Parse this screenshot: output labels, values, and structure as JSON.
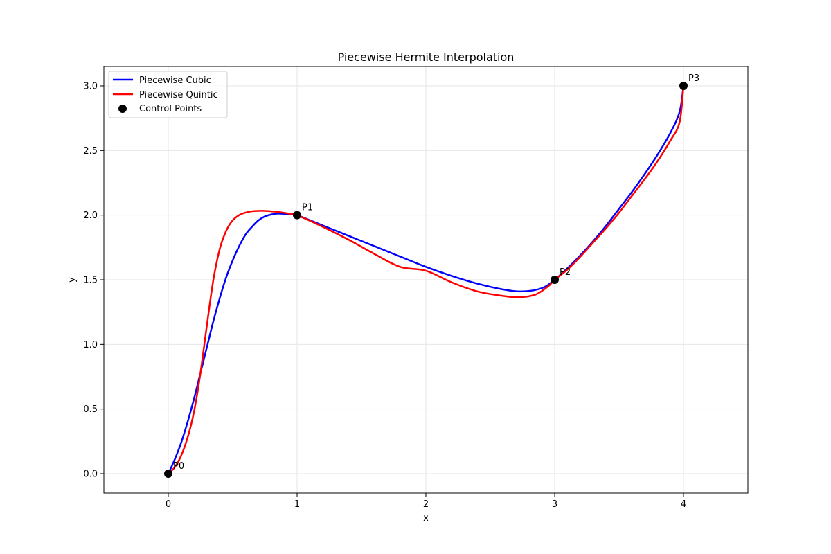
{
  "chart_data": {
    "type": "line",
    "title": "Piecewise Hermite Interpolation",
    "xlabel": "x",
    "ylabel": "y",
    "xlim": [
      -0.5,
      4.5
    ],
    "ylim": [
      -0.15,
      3.15
    ],
    "xticks": [
      0,
      1,
      2,
      3,
      4
    ],
    "xtick_labels": [
      "0",
      "1",
      "2",
      "3",
      "4"
    ],
    "yticks": [
      0.0,
      0.5,
      1.0,
      1.5,
      2.0,
      2.5,
      3.0
    ],
    "ytick_labels": [
      "0.0",
      "0.5",
      "1.0",
      "1.5",
      "2.0",
      "2.5",
      "3.0"
    ],
    "grid": true,
    "legend_position": "upper-left",
    "series": [
      {
        "name": "Piecewise Cubic",
        "color": "#0000ff",
        "x": [
          0.0,
          0.05,
          0.1,
          0.15,
          0.2,
          0.25,
          0.3,
          0.35,
          0.4,
          0.45,
          0.5,
          0.55,
          0.6,
          0.65,
          0.7,
          0.75,
          0.8,
          0.85,
          0.9,
          0.95,
          1.0,
          1.2,
          1.4,
          1.6,
          1.8,
          2.0,
          2.2,
          2.4,
          2.6,
          2.75,
          2.9,
          3.0,
          3.1,
          3.2,
          3.3,
          3.4,
          3.5,
          3.6,
          3.7,
          3.8,
          3.9,
          3.97,
          4.0
        ],
        "y": [
          0.0,
          0.11,
          0.24,
          0.4,
          0.58,
          0.78,
          0.98,
          1.18,
          1.36,
          1.52,
          1.65,
          1.76,
          1.85,
          1.91,
          1.96,
          1.99,
          2.005,
          2.012,
          2.01,
          2.006,
          2.0,
          1.92,
          1.84,
          1.76,
          1.68,
          1.6,
          1.53,
          1.47,
          1.425,
          1.41,
          1.435,
          1.5,
          1.59,
          1.69,
          1.8,
          1.92,
          2.05,
          2.18,
          2.32,
          2.47,
          2.64,
          2.8,
          3.0
        ]
      },
      {
        "name": "Piecewise Quintic",
        "color": "#ff0000",
        "x": [
          0.0,
          0.05,
          0.1,
          0.15,
          0.2,
          0.25,
          0.3,
          0.35,
          0.4,
          0.45,
          0.5,
          0.55,
          0.6,
          0.65,
          0.7,
          0.75,
          0.8,
          0.85,
          0.9,
          0.95,
          1.0,
          1.2,
          1.4,
          1.6,
          1.8,
          2.0,
          2.2,
          2.4,
          2.6,
          2.72,
          2.85,
          2.95,
          3.0,
          3.1,
          3.2,
          3.3,
          3.4,
          3.5,
          3.6,
          3.7,
          3.8,
          3.9,
          3.97,
          4.0
        ],
        "y": [
          0.0,
          0.05,
          0.14,
          0.28,
          0.48,
          0.78,
          1.15,
          1.5,
          1.74,
          1.88,
          1.96,
          2.0,
          2.02,
          2.03,
          2.033,
          2.033,
          2.03,
          2.025,
          2.018,
          2.01,
          2.0,
          1.91,
          1.81,
          1.7,
          1.6,
          1.57,
          1.48,
          1.41,
          1.375,
          1.365,
          1.385,
          1.45,
          1.5,
          1.58,
          1.68,
          1.79,
          1.9,
          2.02,
          2.15,
          2.28,
          2.42,
          2.58,
          2.72,
          3.0
        ]
      }
    ],
    "control_points": {
      "name": "Control Points",
      "color": "#000000",
      "points": [
        {
          "label": "P0",
          "x": 0,
          "y": 0.0
        },
        {
          "label": "P1",
          "x": 1,
          "y": 2.0
        },
        {
          "label": "P2",
          "x": 3,
          "y": 1.5
        },
        {
          "label": "P3",
          "x": 4,
          "y": 3.0
        }
      ]
    }
  }
}
